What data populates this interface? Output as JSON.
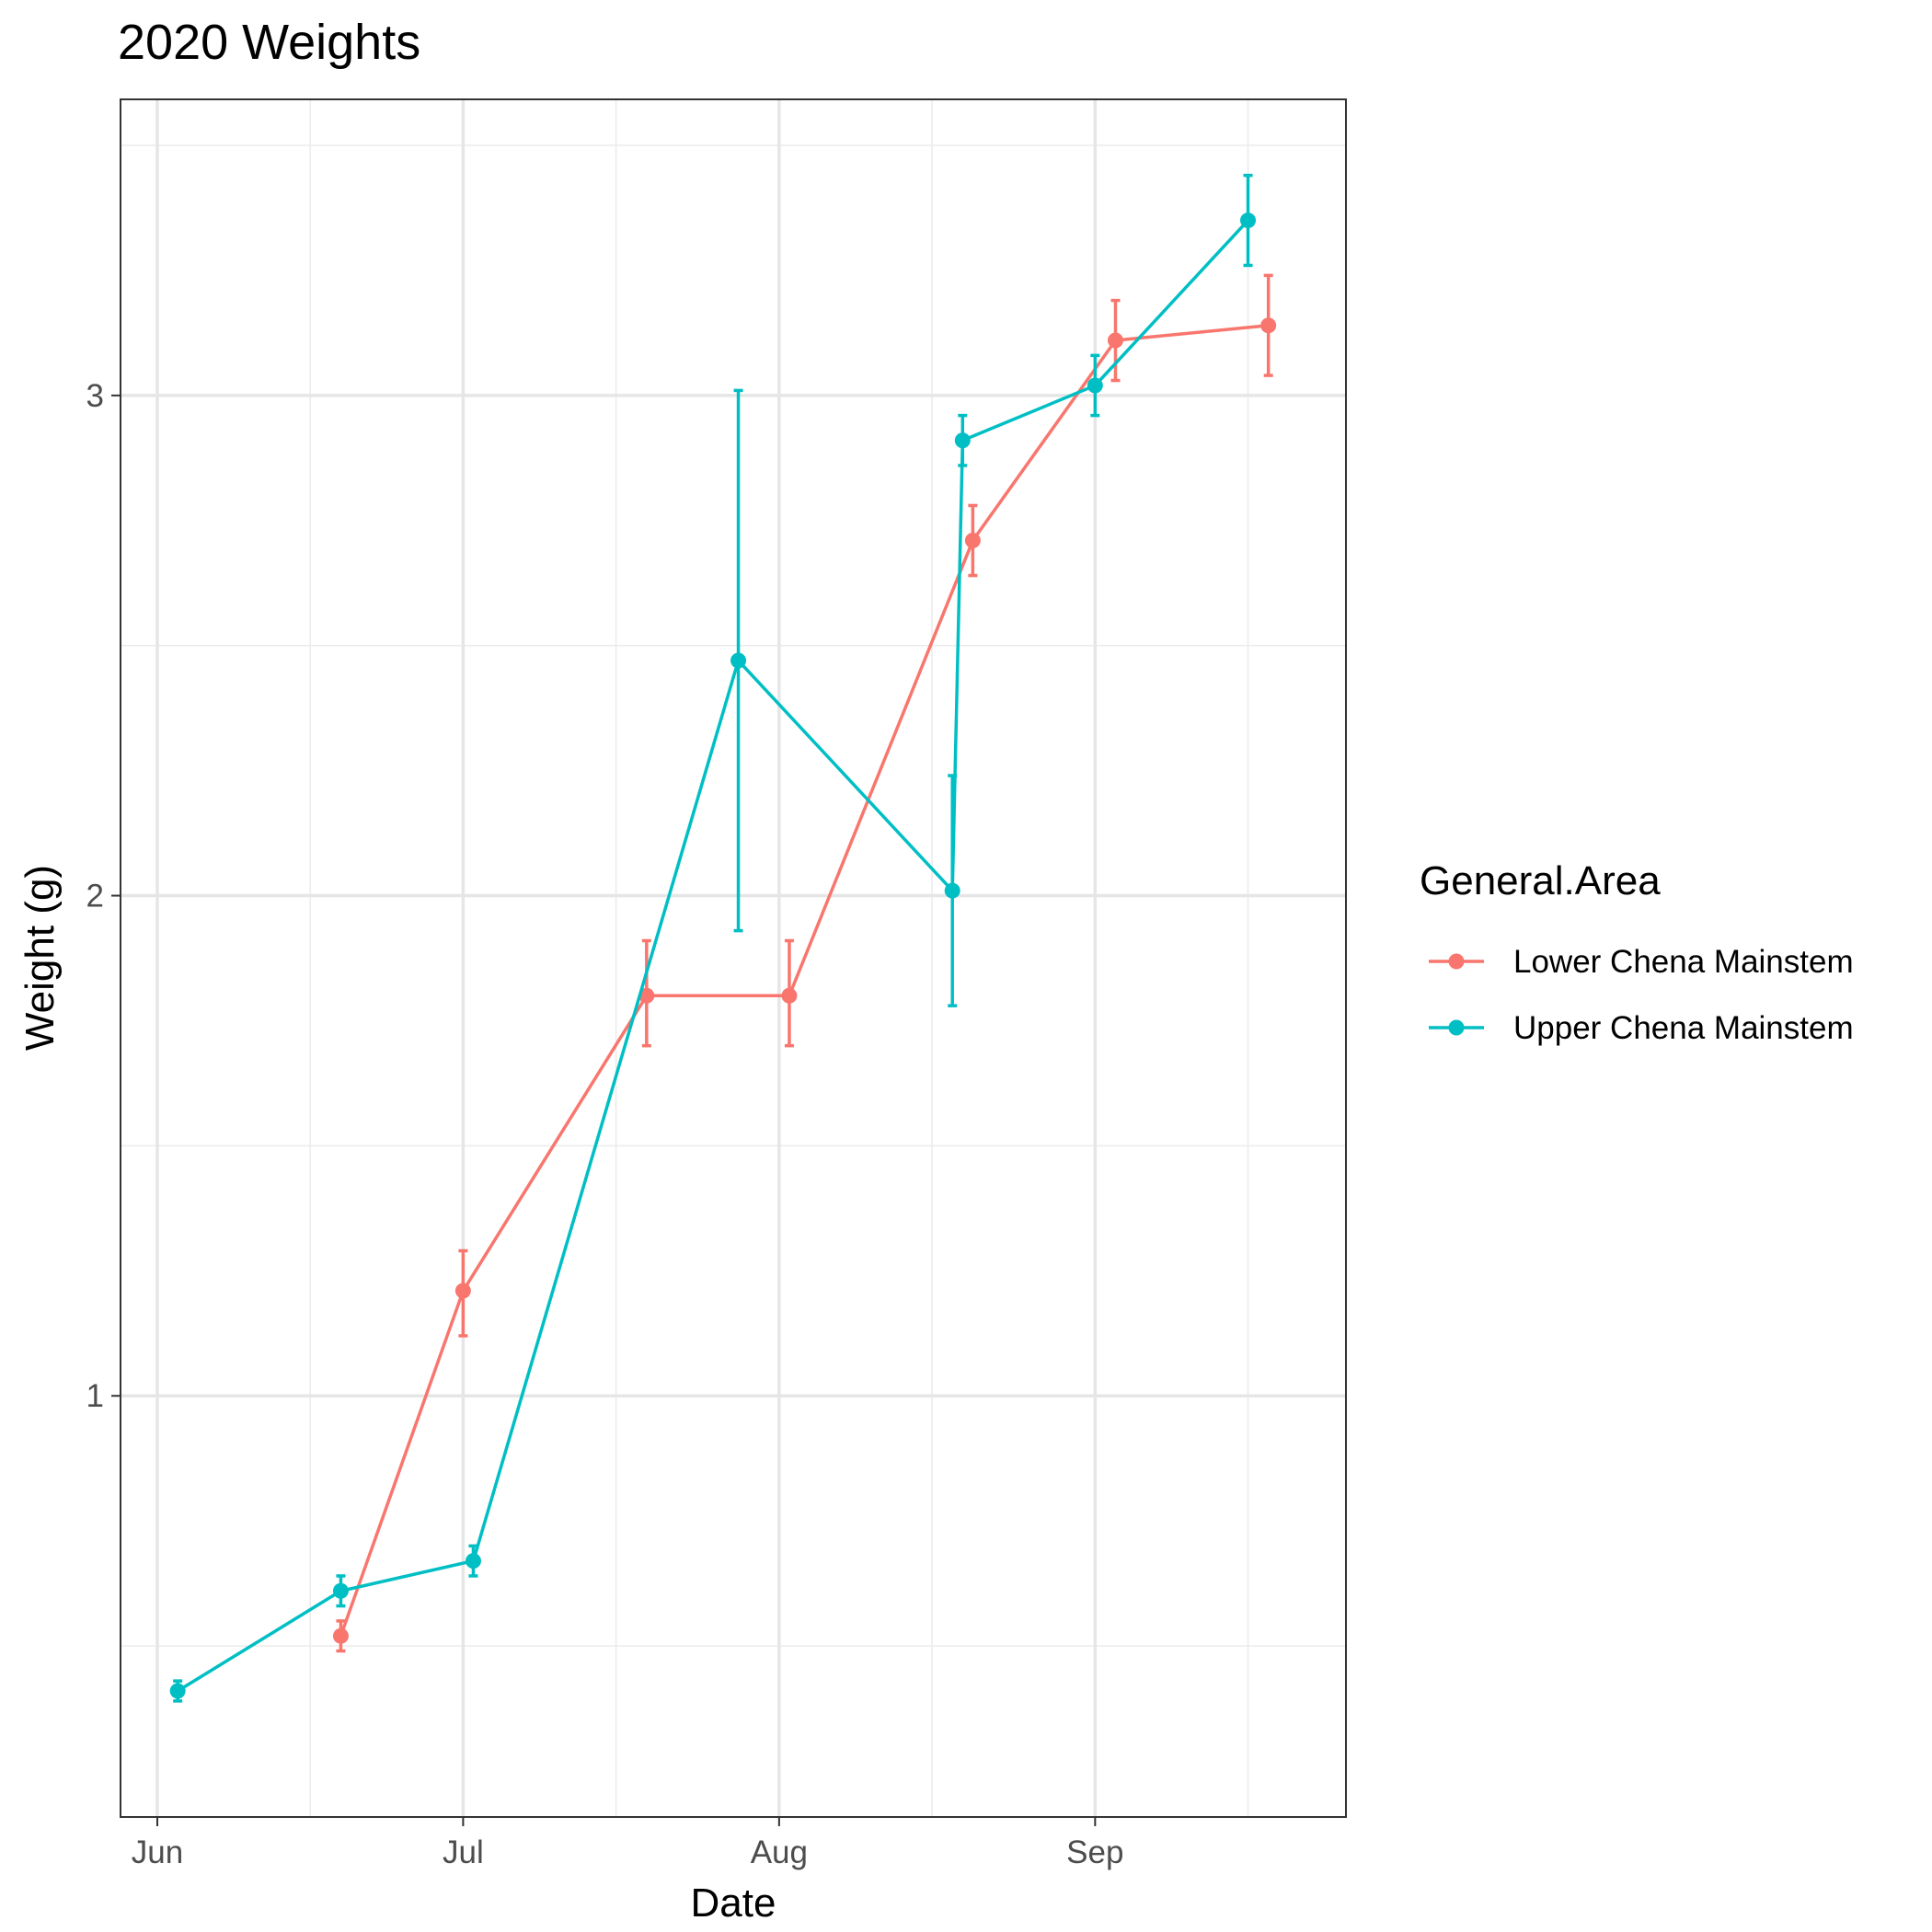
{
  "chart_data": {
    "type": "line",
    "title": "2020 Weights",
    "xlabel": "Date",
    "ylabel": "Weight (g)",
    "x_axis": {
      "kind": "date",
      "range": [
        "2020-06-01",
        "2020-09-22"
      ],
      "ticks": [
        {
          "date": "2020-06-01",
          "label": "Jun"
        },
        {
          "date": "2020-07-01",
          "label": "Jul"
        },
        {
          "date": "2020-08-01",
          "label": "Aug"
        },
        {
          "date": "2020-09-01",
          "label": "Sep"
        }
      ],
      "minor_grid": [
        "2020-06-16",
        "2020-07-16",
        "2020-08-16",
        "2020-09-16"
      ]
    },
    "y_axis": {
      "range": [
        0.25,
        3.5
      ],
      "ticks": [
        {
          "value": 1,
          "label": "1"
        },
        {
          "value": 2,
          "label": "2"
        },
        {
          "value": 3,
          "label": "3"
        }
      ],
      "minor_grid": [
        0.5,
        1.5,
        2.5,
        3.5
      ]
    },
    "grid": true,
    "error_bars": true,
    "legend": {
      "title": "General.Area",
      "position": "right"
    },
    "series": [
      {
        "name": "Lower Chena Mainstem",
        "color": "#F8766D",
        "points": [
          {
            "x": "2020-06-19",
            "y": 0.52,
            "lo": 0.49,
            "hi": 0.55
          },
          {
            "x": "2020-07-01",
            "y": 1.21,
            "lo": 1.12,
            "hi": 1.29
          },
          {
            "x": "2020-07-19",
            "y": 1.8,
            "lo": 1.7,
            "hi": 1.91
          },
          {
            "x": "2020-08-02",
            "y": 1.8,
            "lo": 1.7,
            "hi": 1.91
          },
          {
            "x": "2020-08-20",
            "y": 2.71,
            "lo": 2.64,
            "hi": 2.78
          },
          {
            "x": "2020-09-03",
            "y": 3.11,
            "lo": 3.03,
            "hi": 3.19
          },
          {
            "x": "2020-09-18",
            "y": 3.14,
            "lo": 3.04,
            "hi": 3.24
          }
        ]
      },
      {
        "name": "Upper Chena Mainstem",
        "color": "#00BFC4",
        "points": [
          {
            "x": "2020-06-03",
            "y": 0.41,
            "lo": 0.39,
            "hi": 0.43
          },
          {
            "x": "2020-06-19",
            "y": 0.61,
            "lo": 0.58,
            "hi": 0.64
          },
          {
            "x": "2020-07-02",
            "y": 0.67,
            "lo": 0.64,
            "hi": 0.7
          },
          {
            "x": "2020-07-28",
            "y": 2.47,
            "lo": 1.93,
            "hi": 3.01
          },
          {
            "x": "2020-08-18",
            "y": 2.01,
            "lo": 1.78,
            "hi": 2.24
          },
          {
            "x": "2020-08-19",
            "y": 2.91,
            "lo": 2.86,
            "hi": 2.96
          },
          {
            "x": "2020-09-01",
            "y": 3.02,
            "lo": 2.96,
            "hi": 3.08
          },
          {
            "x": "2020-09-16",
            "y": 3.35,
            "lo": 3.26,
            "hi": 3.44
          }
        ]
      }
    ]
  }
}
